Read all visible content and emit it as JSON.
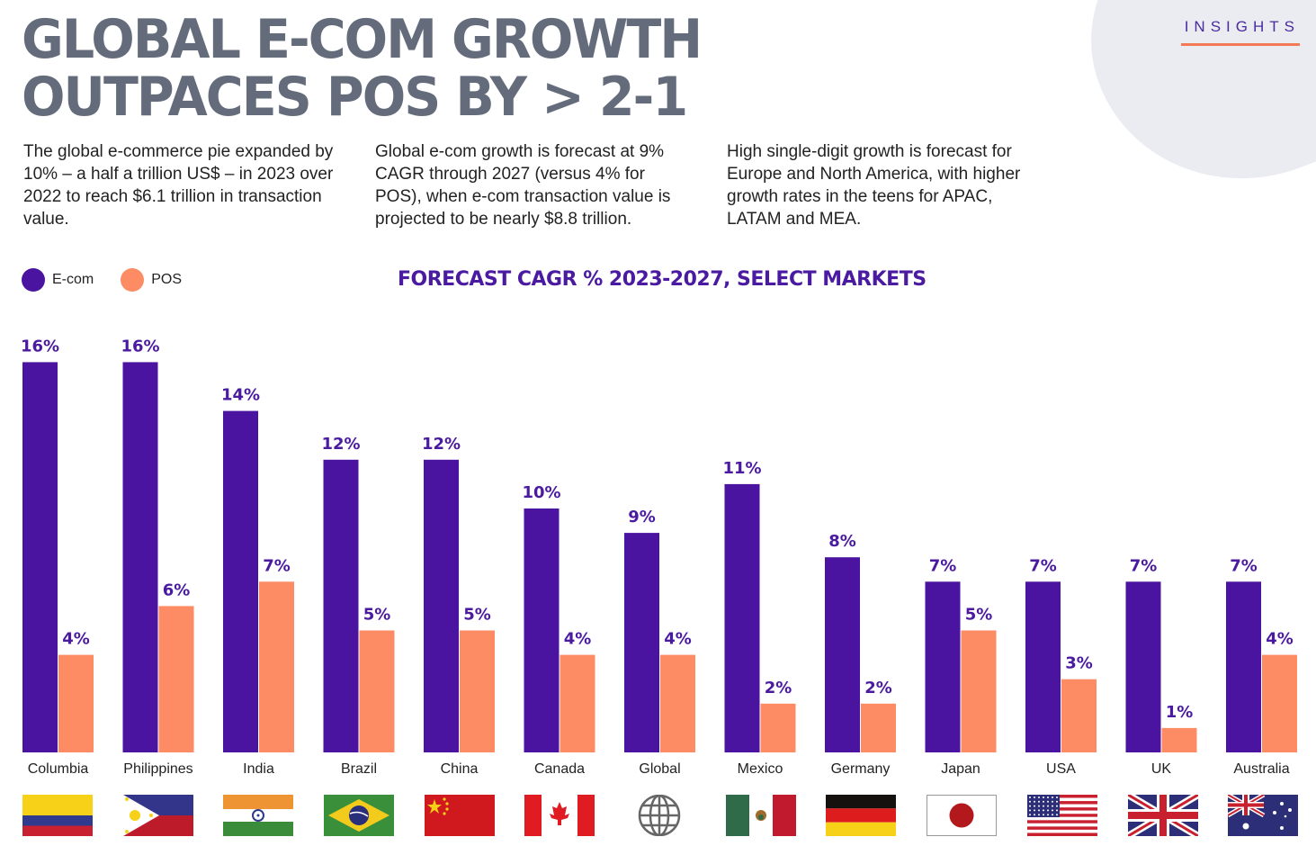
{
  "header": {
    "badge": "INSIGHTS",
    "title_line1": "GLOBAL E-COM GROWTH",
    "title_line2": "OUTPACES POS BY > 2-1"
  },
  "paragraphs": [
    "The global e-commerce pie expanded by 10% – a half a trillion US$ – in 2023 over 2022 to reach $6.1 trillion in transaction value.",
    "Global e-com growth is forecast at 9% CAGR through 2027 (versus 4% for POS), when e-com transaction value is projected to be nearly $8.8 trillion.",
    "High single-digit growth is forecast for Europe and North America, with higher growth rates in the teens for APAC, LATAM and MEA."
  ],
  "colors": {
    "ecom": "#4b14a0",
    "pos": "#fd8c64",
    "title": "#646c7c",
    "accent": "#f27a55"
  },
  "chart_data": {
    "type": "bar",
    "title": "FORECAST CAGR % 2023-2027, SELECT MARKETS",
    "xlabel": "",
    "ylabel": "",
    "ylim": [
      0,
      16
    ],
    "grid": false,
    "legend": "top-left",
    "categories": [
      "Columbia",
      "Philippines",
      "India",
      "Brazil",
      "China",
      "Canada",
      "Global",
      "Mexico",
      "Germany",
      "Japan",
      "USA",
      "UK",
      "Australia"
    ],
    "series": [
      {
        "name": "E-com",
        "values": [
          16,
          16,
          14,
          12,
          12,
          10,
          9,
          11,
          8,
          7,
          7,
          7,
          7
        ]
      },
      {
        "name": "POS",
        "values": [
          4,
          6,
          7,
          5,
          5,
          4,
          4,
          2,
          2,
          5,
          3,
          1,
          4
        ]
      }
    ],
    "value_suffix": "%"
  },
  "flags": [
    "colombia-flag-icon",
    "philippines-flag-icon",
    "india-flag-icon",
    "brazil-flag-icon",
    "china-flag-icon",
    "canada-flag-icon",
    "globe-icon",
    "mexico-flag-icon",
    "germany-flag-icon",
    "japan-flag-icon",
    "usa-flag-icon",
    "uk-flag-icon",
    "australia-flag-icon"
  ]
}
